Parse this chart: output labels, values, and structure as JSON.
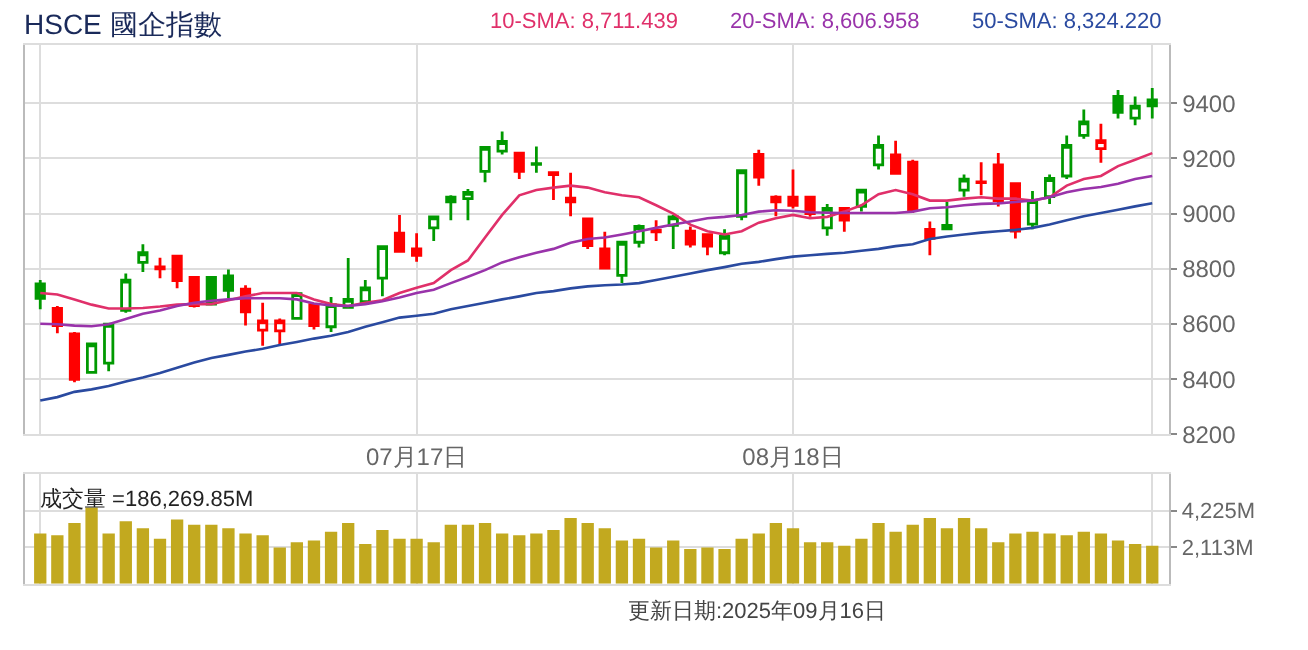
{
  "chart_data": [
    {
      "type": "candlestick",
      "title": "HSCE 國企指數",
      "categories": [
        null,
        null,
        null,
        null,
        null,
        null,
        null,
        null,
        null,
        null,
        null,
        null,
        null,
        null,
        null,
        null,
        null,
        null,
        null,
        null,
        null,
        null,
        "07月17日",
        null,
        null,
        null,
        null,
        null,
        null,
        null,
        null,
        null,
        null,
        null,
        null,
        null,
        null,
        null,
        null,
        null,
        null,
        null,
        null,
        null,
        "08月18日",
        null,
        null,
        null,
        null,
        null,
        null,
        null,
        null,
        null,
        null,
        null,
        null,
        null,
        null,
        null,
        null,
        null,
        null,
        null,
        null,
        null
      ],
      "ohlc": [
        [
          8745,
          8759,
          8653,
          8693
        ],
        [
          8656,
          8665,
          8566,
          8594
        ],
        [
          8564,
          8571,
          8389,
          8399
        ],
        [
          8425,
          8530,
          8423,
          8528
        ],
        [
          8458,
          8600,
          8429,
          8599
        ],
        [
          8649,
          8783,
          8641,
          8759
        ],
        [
          8823,
          8889,
          8788,
          8858
        ],
        [
          8807,
          8840,
          8766,
          8800
        ],
        [
          8846,
          8846,
          8729,
          8757
        ],
        [
          8769,
          8769,
          8660,
          8667
        ],
        [
          8769,
          8769,
          8667,
          8672
        ],
        [
          8774,
          8797,
          8693,
          8722
        ],
        [
          8726,
          8740,
          8594,
          8644
        ],
        [
          8578,
          8677,
          8521,
          8611
        ],
        [
          8575,
          8620,
          8524,
          8611
        ],
        [
          8620,
          8715,
          8616,
          8710
        ],
        [
          8670,
          8670,
          8580,
          8594
        ],
        [
          8590,
          8698,
          8571,
          8670
        ],
        [
          8660,
          8839,
          8660,
          8689
        ],
        [
          8681,
          8759,
          8677,
          8731
        ],
        [
          8766,
          8880,
          8700,
          8880
        ],
        [
          8929,
          8995,
          8858,
          8863
        ],
        [
          8872,
          8929,
          8825,
          8849
        ],
        [
          8948,
          8988,
          8901,
          8988
        ],
        [
          9059,
          9066,
          8976,
          9042
        ],
        [
          9054,
          9089,
          8976,
          9077
        ],
        [
          9153,
          9240,
          9113,
          9240
        ],
        [
          9226,
          9297,
          9214,
          9261
        ],
        [
          9219,
          9219,
          9125,
          9153
        ],
        [
          9181,
          9243,
          9148,
          9178
        ],
        [
          9148,
          9148,
          9049,
          9141
        ],
        [
          9056,
          9148,
          8990,
          9042
        ],
        [
          8981,
          8981,
          8872,
          8884
        ],
        [
          8872,
          8934,
          8802,
          8802
        ],
        [
          8776,
          8901,
          8748,
          8896
        ],
        [
          8896,
          8960,
          8877,
          8953
        ],
        [
          8940,
          8976,
          8901,
          8934
        ],
        [
          8957,
          8995,
          8872,
          8988
        ],
        [
          8936,
          8953,
          8877,
          8889
        ],
        [
          8924,
          8924,
          8849,
          8882
        ],
        [
          8858,
          8943,
          8849,
          8917
        ],
        [
          8990,
          9155,
          8976,
          9155
        ],
        [
          9214,
          9231,
          9101,
          9132
        ],
        [
          9059,
          9066,
          8990,
          9042
        ],
        [
          9059,
          9160,
          9018,
          9030
        ],
        [
          9059,
          9059,
          8988,
          9000
        ],
        [
          8948,
          9035,
          8920,
          9019
        ],
        [
          9019,
          9019,
          8934,
          8976
        ],
        [
          9026,
          9085,
          9007,
          9085
        ],
        [
          9176,
          9283,
          9160,
          9247
        ],
        [
          9212,
          9264,
          9141,
          9146
        ],
        [
          9186,
          9195,
          9002,
          9014
        ],
        [
          8943,
          8971,
          8849,
          8910
        ],
        [
          8957,
          9042,
          8941,
          8945
        ],
        [
          9085,
          9141,
          9061,
          9125
        ],
        [
          9115,
          9186,
          9066,
          9112
        ],
        [
          9176,
          9219,
          9026,
          9047
        ],
        [
          9108,
          9108,
          8910,
          8936
        ],
        [
          8962,
          9082,
          8943,
          9047
        ],
        [
          9061,
          9141,
          9035,
          9127
        ],
        [
          9136,
          9283,
          9125,
          9247
        ],
        [
          9283,
          9377,
          9271,
          9332
        ],
        [
          9235,
          9325,
          9184,
          9264
        ],
        [
          9424,
          9448,
          9344,
          9367
        ],
        [
          9346,
          9424,
          9320,
          9389
        ],
        [
          9412,
          9455,
          9344,
          9390
        ]
      ],
      "colors": [
        "#009900",
        "#ff0000",
        "#ff0000",
        "#009900",
        "#009900",
        "#009900",
        "#009900",
        "#ff0000",
        "#ff0000",
        "#ff0000",
        "#009900",
        "#009900",
        "#ff0000",
        "#ff0000",
        "#ff0000",
        "#009900",
        "#ff0000",
        "#009900",
        "#009900",
        "#009900",
        "#009900",
        "#ff0000",
        "#ff0000",
        "#009900",
        "#009900",
        "#009900",
        "#009900",
        "#009900",
        "#ff0000",
        "#009900",
        "#ff0000",
        "#ff0000",
        "#ff0000",
        "#ff0000",
        "#009900",
        "#009900",
        "#ff0000",
        "#009900",
        "#ff0000",
        "#ff0000",
        "#009900",
        "#009900",
        "#ff0000",
        "#ff0000",
        "#ff0000",
        "#ff0000",
        "#009900",
        "#ff0000",
        "#009900",
        "#009900",
        "#ff0000",
        "#ff0000",
        "#ff0000",
        "#009900",
        "#009900",
        "#ff0000",
        "#ff0000",
        "#ff0000",
        "#009900",
        "#009900",
        "#009900",
        "#009900",
        "#ff0000",
        "#009900",
        "#009900",
        "#009900"
      ],
      "series": [
        {
          "name": "10-SMA: 8,711.439",
          "type": "line",
          "color": "#e0306a",
          "values": [
            8712,
            8707,
            8689,
            8670,
            8656,
            8656,
            8658,
            8663,
            8670,
            8672,
            8672,
            8686,
            8700,
            8712,
            8712,
            8712,
            8689,
            8672,
            8665,
            8677,
            8686,
            8712,
            8731,
            8748,
            8795,
            8830,
            8913,
            8995,
            9066,
            9085,
            9094,
            9101,
            9094,
            9077,
            9066,
            9059,
            9030,
            9000,
            8960,
            8936,
            8924,
            8936,
            8967,
            8983,
            8995,
            8983,
            8988,
            9007,
            9030,
            9070,
            9085,
            9070,
            9047,
            9047,
            9054,
            9059,
            9054,
            9054,
            9047,
            9059,
            9101,
            9125,
            9136,
            9172,
            9195,
            9219
          ]
        },
        {
          "name": "20-SMA: 8,606.958",
          "type": "line",
          "color": "#9933aa",
          "values": [
            8601,
            8599,
            8594,
            8592,
            8599,
            8618,
            8637,
            8649,
            8665,
            8677,
            8684,
            8689,
            8693,
            8693,
            8693,
            8689,
            8674,
            8667,
            8665,
            8672,
            8682,
            8696,
            8712,
            8724,
            8748,
            8771,
            8795,
            8823,
            8842,
            8858,
            8872,
            8894,
            8908,
            8913,
            8924,
            8936,
            8948,
            8960,
            8971,
            8983,
            8988,
            8995,
            9007,
            9012,
            9010,
            9005,
            9003,
            9002,
            9002,
            9002,
            9002,
            9007,
            9019,
            9023,
            9030,
            9035,
            9037,
            9042,
            9047,
            9059,
            9077,
            9089,
            9096,
            9108,
            9125,
            9136
          ]
        },
        {
          "name": "50-SMA: 8,324.220",
          "type": "line",
          "color": "#2a4aa0",
          "values": [
            8323,
            8335,
            8354,
            8363,
            8375,
            8392,
            8406,
            8422,
            8441,
            8460,
            8477,
            8488,
            8500,
            8510,
            8524,
            8535,
            8547,
            8557,
            8571,
            8590,
            8606,
            8623,
            8630,
            8637,
            8653,
            8665,
            8677,
            8689,
            8700,
            8712,
            8719,
            8729,
            8736,
            8740,
            8743,
            8748,
            8759,
            8771,
            8783,
            8795,
            8806,
            8818,
            8825,
            8835,
            8844,
            8849,
            8854,
            8858,
            8865,
            8872,
            8882,
            8889,
            8908,
            8917,
            8924,
            8931,
            8936,
            8941,
            8948,
            8960,
            8976,
            8990,
            9002,
            9014,
            9026,
            9037
          ]
        }
      ],
      "ylim": [
        8200,
        9610
      ],
      "yticks": [
        8200,
        8400,
        8600,
        8800,
        9000,
        9200,
        9400
      ],
      "grid": true
    },
    {
      "type": "bar",
      "color": "#c2a91f",
      "categories": [
        null,
        null,
        null,
        null,
        null,
        null,
        null,
        null,
        null,
        null,
        null,
        null,
        null,
        null,
        null,
        null,
        null,
        null,
        null,
        null,
        null,
        null,
        null,
        null,
        null,
        null,
        null,
        null,
        null,
        null,
        null,
        null,
        null,
        null,
        null,
        null,
        null,
        null,
        null,
        null,
        null,
        null,
        null,
        null,
        null,
        null,
        null,
        null,
        null,
        null,
        null,
        null,
        null,
        null,
        null,
        null,
        null,
        null,
        null,
        null,
        null,
        null,
        null,
        null,
        null,
        null
      ],
      "values": [
        2900,
        2800,
        3500,
        4400,
        2900,
        3600,
        3200,
        2600,
        3700,
        3400,
        3400,
        3200,
        2900,
        2800,
        2100,
        2400,
        2500,
        3000,
        3500,
        2300,
        3100,
        2600,
        2600,
        2400,
        3400,
        3400,
        3500,
        2900,
        2800,
        2900,
        3100,
        3800,
        3500,
        3200,
        2500,
        2600,
        2100,
        2500,
        2000,
        2100,
        2000,
        2600,
        2900,
        3500,
        3200,
        2400,
        2400,
        2200,
        2600,
        3500,
        3000,
        3400,
        3800,
        3200,
        3800,
        3200,
        2400,
        2900,
        3000,
        2900,
        2800,
        3000,
        2900,
        2500,
        2300,
        2200
      ],
      "ylim": [
        0,
        6338
      ],
      "yticks": [
        {
          "value": 2113,
          "label": "2,113M"
        },
        {
          "value": 4225,
          "label": "4,225M"
        }
      ],
      "tick_labels": "y",
      "grid": true,
      "annotations": [
        "成交量 =186,269.85M",
        "更新日期:2025年09月16日"
      ]
    }
  ]
}
